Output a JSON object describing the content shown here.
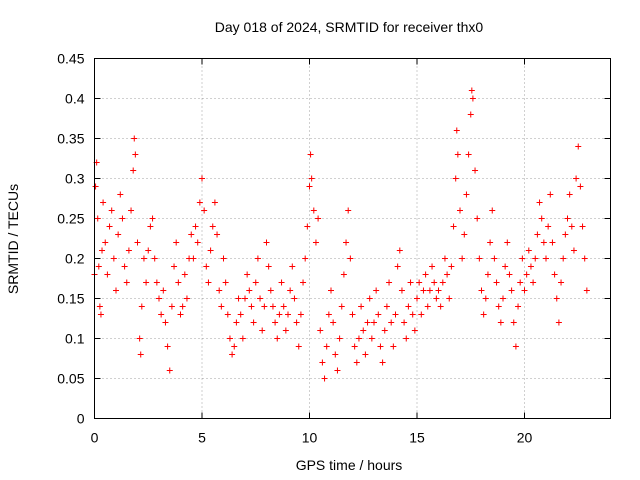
{
  "chart_data": {
    "type": "scatter",
    "title": "Day 018 of 2024, SRMTID for receiver thx0",
    "xlabel": "GPS time / hours",
    "ylabel": "SRMTID / TECUs",
    "xlim": [
      0,
      24
    ],
    "ylim": [
      0,
      0.45
    ],
    "xticks": [
      "0",
      "5",
      "10",
      "15",
      "20"
    ],
    "xtick_values": [
      0,
      5,
      10,
      15,
      20
    ],
    "yticks": [
      "0",
      "0.05",
      "0.1",
      "0.15",
      "0.2",
      "0.25",
      "0.3",
      "0.35",
      "0.4",
      "0.45"
    ],
    "ytick_values": [
      0,
      0.05,
      0.1,
      0.15,
      0.2,
      0.25,
      0.3,
      0.35,
      0.4,
      0.45
    ],
    "grid": true,
    "marker": "plus",
    "color": "#ff0000",
    "series": [
      {
        "values_note": "",
        "points": [
          [
            0.0,
            0.18
          ],
          [
            0.05,
            0.29
          ],
          [
            0.1,
            0.32
          ],
          [
            0.15,
            0.25
          ],
          [
            0.2,
            0.19
          ],
          [
            0.25,
            0.14
          ],
          [
            0.3,
            0.13
          ],
          [
            0.35,
            0.21
          ],
          [
            0.4,
            0.27
          ],
          [
            0.5,
            0.22
          ],
          [
            0.6,
            0.18
          ],
          [
            0.7,
            0.24
          ],
          [
            0.8,
            0.26
          ],
          [
            0.9,
            0.2
          ],
          [
            1.0,
            0.16
          ],
          [
            1.1,
            0.23
          ],
          [
            1.2,
            0.28
          ],
          [
            1.3,
            0.25
          ],
          [
            1.4,
            0.19
          ],
          [
            1.5,
            0.17
          ],
          [
            1.6,
            0.21
          ],
          [
            1.7,
            0.26
          ],
          [
            1.8,
            0.31
          ],
          [
            1.85,
            0.35
          ],
          [
            1.9,
            0.33
          ],
          [
            2.0,
            0.22
          ],
          [
            2.1,
            0.1
          ],
          [
            2.15,
            0.08
          ],
          [
            2.2,
            0.14
          ],
          [
            2.3,
            0.2
          ],
          [
            2.4,
            0.17
          ],
          [
            2.5,
            0.21
          ],
          [
            2.6,
            0.24
          ],
          [
            2.7,
            0.25
          ],
          [
            2.8,
            0.2
          ],
          [
            2.9,
            0.17
          ],
          [
            3.0,
            0.15
          ],
          [
            3.1,
            0.13
          ],
          [
            3.2,
            0.16
          ],
          [
            3.3,
            0.12
          ],
          [
            3.4,
            0.09
          ],
          [
            3.5,
            0.06
          ],
          [
            3.6,
            0.14
          ],
          [
            3.7,
            0.19
          ],
          [
            3.8,
            0.22
          ],
          [
            3.9,
            0.17
          ],
          [
            4.0,
            0.13
          ],
          [
            4.1,
            0.14
          ],
          [
            4.2,
            0.18
          ],
          [
            4.3,
            0.15
          ],
          [
            4.4,
            0.2
          ],
          [
            4.5,
            0.23
          ],
          [
            4.6,
            0.2
          ],
          [
            4.7,
            0.24
          ],
          [
            4.8,
            0.22
          ],
          [
            4.9,
            0.27
          ],
          [
            5.0,
            0.3
          ],
          [
            5.1,
            0.26
          ],
          [
            5.2,
            0.19
          ],
          [
            5.3,
            0.17
          ],
          [
            5.4,
            0.21
          ],
          [
            5.5,
            0.24
          ],
          [
            5.6,
            0.27
          ],
          [
            5.7,
            0.23
          ],
          [
            5.8,
            0.16
          ],
          [
            5.9,
            0.14
          ],
          [
            6.0,
            0.2
          ],
          [
            6.1,
            0.17
          ],
          [
            6.2,
            0.13
          ],
          [
            6.3,
            0.1
          ],
          [
            6.4,
            0.08
          ],
          [
            6.5,
            0.09
          ],
          [
            6.6,
            0.12
          ],
          [
            6.7,
            0.15
          ],
          [
            6.8,
            0.13
          ],
          [
            6.9,
            0.1
          ],
          [
            7.0,
            0.15
          ],
          [
            7.1,
            0.18
          ],
          [
            7.2,
            0.16
          ],
          [
            7.3,
            0.14
          ],
          [
            7.4,
            0.12
          ],
          [
            7.5,
            0.17
          ],
          [
            7.6,
            0.2
          ],
          [
            7.7,
            0.15
          ],
          [
            7.8,
            0.11
          ],
          [
            7.9,
            0.14
          ],
          [
            8.0,
            0.22
          ],
          [
            8.1,
            0.19
          ],
          [
            8.2,
            0.16
          ],
          [
            8.3,
            0.14
          ],
          [
            8.4,
            0.12
          ],
          [
            8.5,
            0.1
          ],
          [
            8.6,
            0.13
          ],
          [
            8.7,
            0.17
          ],
          [
            8.8,
            0.14
          ],
          [
            8.9,
            0.11
          ],
          [
            9.0,
            0.13
          ],
          [
            9.1,
            0.16
          ],
          [
            9.2,
            0.19
          ],
          [
            9.3,
            0.15
          ],
          [
            9.4,
            0.12
          ],
          [
            9.5,
            0.09
          ],
          [
            9.6,
            0.13
          ],
          [
            9.7,
            0.17
          ],
          [
            9.8,
            0.2
          ],
          [
            9.9,
            0.24
          ],
          [
            10.0,
            0.29
          ],
          [
            10.05,
            0.33
          ],
          [
            10.1,
            0.3
          ],
          [
            10.2,
            0.26
          ],
          [
            10.3,
            0.22
          ],
          [
            10.4,
            0.25
          ],
          [
            10.5,
            0.11
          ],
          [
            10.6,
            0.07
          ],
          [
            10.7,
            0.05
          ],
          [
            10.8,
            0.09
          ],
          [
            10.9,
            0.13
          ],
          [
            11.0,
            0.16
          ],
          [
            11.1,
            0.12
          ],
          [
            11.2,
            0.08
          ],
          [
            11.3,
            0.06
          ],
          [
            11.4,
            0.1
          ],
          [
            11.5,
            0.14
          ],
          [
            11.6,
            0.18
          ],
          [
            11.7,
            0.22
          ],
          [
            11.8,
            0.26
          ],
          [
            11.9,
            0.2
          ],
          [
            12.0,
            0.13
          ],
          [
            12.1,
            0.09
          ],
          [
            12.2,
            0.07
          ],
          [
            12.3,
            0.1
          ],
          [
            12.4,
            0.14
          ],
          [
            12.5,
            0.11
          ],
          [
            12.6,
            0.08
          ],
          [
            12.7,
            0.12
          ],
          [
            12.8,
            0.15
          ],
          [
            12.9,
            0.1
          ],
          [
            13.0,
            0.12
          ],
          [
            13.1,
            0.16
          ],
          [
            13.2,
            0.13
          ],
          [
            13.3,
            0.09
          ],
          [
            13.4,
            0.07
          ],
          [
            13.5,
            0.11
          ],
          [
            13.6,
            0.14
          ],
          [
            13.7,
            0.17
          ],
          [
            13.8,
            0.12
          ],
          [
            13.9,
            0.09
          ],
          [
            14.0,
            0.13
          ],
          [
            14.1,
            0.19
          ],
          [
            14.2,
            0.21
          ],
          [
            14.3,
            0.16
          ],
          [
            14.4,
            0.12
          ],
          [
            14.5,
            0.1
          ],
          [
            14.6,
            0.14
          ],
          [
            14.7,
            0.17
          ],
          [
            14.8,
            0.13
          ],
          [
            14.9,
            0.11
          ],
          [
            15.0,
            0.15
          ],
          [
            15.1,
            0.17
          ],
          [
            15.2,
            0.13
          ],
          [
            15.3,
            0.16
          ],
          [
            15.4,
            0.18
          ],
          [
            15.5,
            0.14
          ],
          [
            15.6,
            0.16
          ],
          [
            15.7,
            0.19
          ],
          [
            15.8,
            0.17
          ],
          [
            15.9,
            0.15
          ],
          [
            16.0,
            0.16
          ],
          [
            16.1,
            0.14
          ],
          [
            16.2,
            0.17
          ],
          [
            16.3,
            0.2
          ],
          [
            16.4,
            0.18
          ],
          [
            16.5,
            0.15
          ],
          [
            16.6,
            0.19
          ],
          [
            16.7,
            0.24
          ],
          [
            16.8,
            0.3
          ],
          [
            16.85,
            0.36
          ],
          [
            16.9,
            0.33
          ],
          [
            17.0,
            0.26
          ],
          [
            17.1,
            0.2
          ],
          [
            17.2,
            0.23
          ],
          [
            17.3,
            0.28
          ],
          [
            17.4,
            0.33
          ],
          [
            17.5,
            0.38
          ],
          [
            17.55,
            0.41
          ],
          [
            17.6,
            0.4
          ],
          [
            17.7,
            0.31
          ],
          [
            17.8,
            0.25
          ],
          [
            17.9,
            0.2
          ],
          [
            18.0,
            0.16
          ],
          [
            18.1,
            0.13
          ],
          [
            18.2,
            0.15
          ],
          [
            18.3,
            0.18
          ],
          [
            18.4,
            0.22
          ],
          [
            18.5,
            0.26
          ],
          [
            18.6,
            0.2
          ],
          [
            18.7,
            0.17
          ],
          [
            18.8,
            0.14
          ],
          [
            18.9,
            0.12
          ],
          [
            19.0,
            0.15
          ],
          [
            19.1,
            0.19
          ],
          [
            19.2,
            0.22
          ],
          [
            19.3,
            0.18
          ],
          [
            19.4,
            0.16
          ],
          [
            19.5,
            0.12
          ],
          [
            19.6,
            0.09
          ],
          [
            19.7,
            0.14
          ],
          [
            19.8,
            0.17
          ],
          [
            19.9,
            0.2
          ],
          [
            20.0,
            0.16
          ],
          [
            20.1,
            0.18
          ],
          [
            20.2,
            0.21
          ],
          [
            20.3,
            0.19
          ],
          [
            20.4,
            0.17
          ],
          [
            20.5,
            0.2
          ],
          [
            20.6,
            0.23
          ],
          [
            20.7,
            0.27
          ],
          [
            20.8,
            0.25
          ],
          [
            20.9,
            0.22
          ],
          [
            21.0,
            0.2
          ],
          [
            21.1,
            0.24
          ],
          [
            21.2,
            0.28
          ],
          [
            21.3,
            0.22
          ],
          [
            21.4,
            0.18
          ],
          [
            21.5,
            0.15
          ],
          [
            21.6,
            0.12
          ],
          [
            21.7,
            0.17
          ],
          [
            21.8,
            0.2
          ],
          [
            21.9,
            0.23
          ],
          [
            22.0,
            0.25
          ],
          [
            22.1,
            0.28
          ],
          [
            22.2,
            0.24
          ],
          [
            22.3,
            0.21
          ],
          [
            22.4,
            0.3
          ],
          [
            22.5,
            0.34
          ],
          [
            22.6,
            0.29
          ],
          [
            22.7,
            0.24
          ],
          [
            22.8,
            0.2
          ],
          [
            22.9,
            0.16
          ]
        ]
      }
    ]
  }
}
